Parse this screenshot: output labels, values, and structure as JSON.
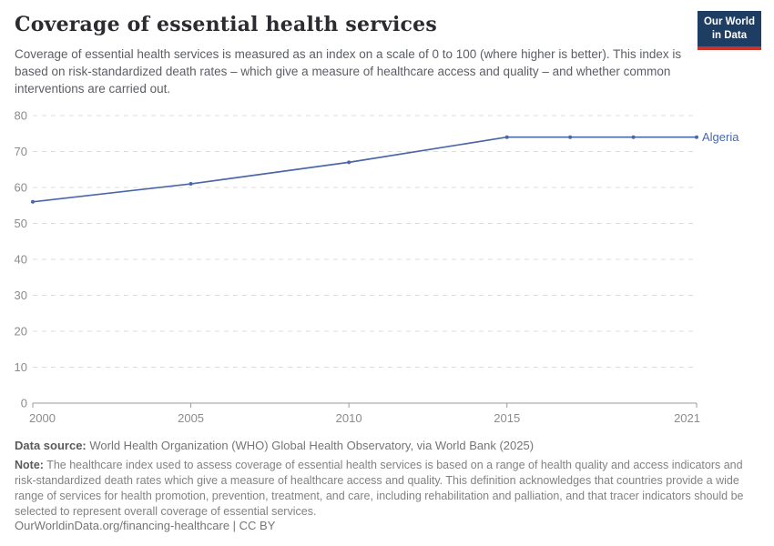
{
  "header": {
    "title": "Coverage of essential health services",
    "subtitle": "Coverage of essential health services is measured as an index on a scale of 0 to 100 (where higher is better). This index is based on risk-standardized death rates – which give a measure of healthcare access and quality – and whether common interventions are carried out.",
    "logo": {
      "line1": "Our World",
      "line2": "in Data",
      "background_color": "#1d3d63",
      "accent_color": "#c9342a"
    }
  },
  "chart_data": {
    "type": "line",
    "title": "Coverage of essential health services",
    "xlabel": "",
    "ylabel": "",
    "xlim": [
      2000,
      2021
    ],
    "ylim": [
      0,
      80
    ],
    "xticks": [
      2000,
      2005,
      2010,
      2015,
      2021
    ],
    "yticks": [
      0,
      10,
      20,
      30,
      40,
      50,
      60,
      70,
      80
    ],
    "grid": "horizontal-dashed",
    "legend_position": "right-of-line-end",
    "series": [
      {
        "name": "Algeria",
        "color": "#4a68a6",
        "x": [
          2000,
          2005,
          2010,
          2015,
          2017,
          2019,
          2021
        ],
        "values": [
          56,
          61,
          67,
          74,
          74,
          74,
          74
        ]
      }
    ]
  },
  "footer": {
    "datasource_label": "Data source:",
    "datasource_text": " World Health Organization (WHO) Global Health Observatory, via World Bank (2025)",
    "note_label": "Note:",
    "note_text": " The healthcare index used to assess coverage of essential health services is based on a range of health quality and access indicators and risk-standardized death rates which give a measure of healthcare access and quality. This definition acknowledges that countries provide a wide range of services for health promotion, prevention, treatment, and care, including rehabilitation and palliation, and that tracer indicators should be selected to represent overall coverage of essential services.",
    "license_line": "OurWorldinData.org/financing-healthcare | CC BY"
  }
}
